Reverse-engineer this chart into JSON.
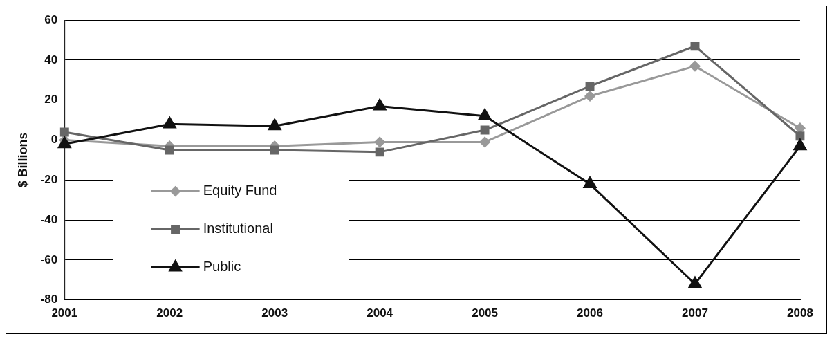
{
  "chart_data": {
    "type": "line",
    "ylabel": "$ Billions",
    "categories": [
      "2001",
      "2002",
      "2003",
      "2004",
      "2005",
      "2006",
      "2007",
      "2008"
    ],
    "series": [
      {
        "name": "Equity Fund",
        "color": "#999999",
        "marker": "diamond",
        "values": [
          0,
          -3,
          -3,
          -1,
          -1,
          22,
          37,
          6
        ]
      },
      {
        "name": "Institutional",
        "color": "#666666",
        "marker": "square",
        "values": [
          4,
          -5,
          -5,
          -6,
          5,
          27,
          47,
          2
        ]
      },
      {
        "name": "Public",
        "color": "#111111",
        "marker": "triangle",
        "values": [
          -2,
          8,
          7,
          17,
          12,
          -22,
          -72,
          -3
        ]
      }
    ],
    "ylim": [
      -80,
      60
    ],
    "yticks": [
      -80,
      -60,
      -40,
      -20,
      0,
      20,
      40,
      60
    ],
    "grid": "y",
    "legend": "bottom left"
  }
}
